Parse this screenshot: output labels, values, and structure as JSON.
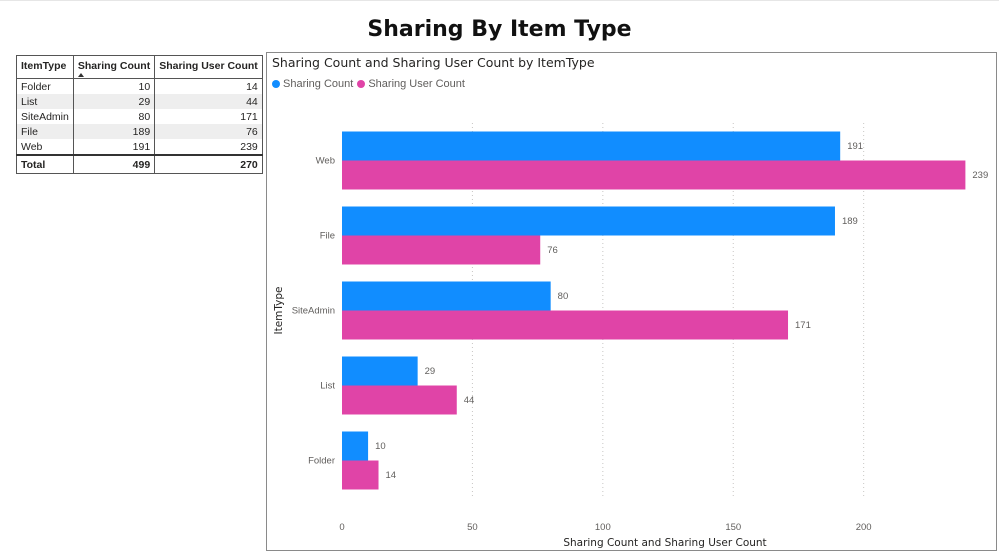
{
  "page_title": "Sharing By Item Type",
  "table": {
    "headers": [
      "ItemType",
      "Sharing Count",
      "Sharing User Count"
    ],
    "rows": [
      [
        "Folder",
        "10",
        "14"
      ],
      [
        "List",
        "29",
        "44"
      ],
      [
        "SiteAdmin",
        "80",
        "171"
      ],
      [
        "File",
        "189",
        "76"
      ],
      [
        "Web",
        "191",
        "239"
      ]
    ],
    "total": [
      "Total",
      "499",
      "270"
    ]
  },
  "colors": {
    "sharing_count": "#118dff",
    "sharing_user_count": "#e044a7"
  },
  "chart_data": {
    "type": "bar",
    "orientation": "horizontal",
    "title": "Sharing Count and Sharing User Count by ItemType",
    "xlabel": "Sharing Count and Sharing User Count",
    "ylabel": "ItemType",
    "categories": [
      "Web",
      "File",
      "SiteAdmin",
      "List",
      "Folder"
    ],
    "series": [
      {
        "name": "Sharing Count",
        "values": [
          191,
          189,
          80,
          29,
          10
        ]
      },
      {
        "name": "Sharing User Count",
        "values": [
          239,
          76,
          171,
          44,
          14
        ]
      }
    ],
    "xlim": [
      0,
      240
    ],
    "xticks": [
      0,
      50,
      100,
      150,
      200
    ],
    "grid": "vertical dotted",
    "legend_position": "top-left"
  }
}
